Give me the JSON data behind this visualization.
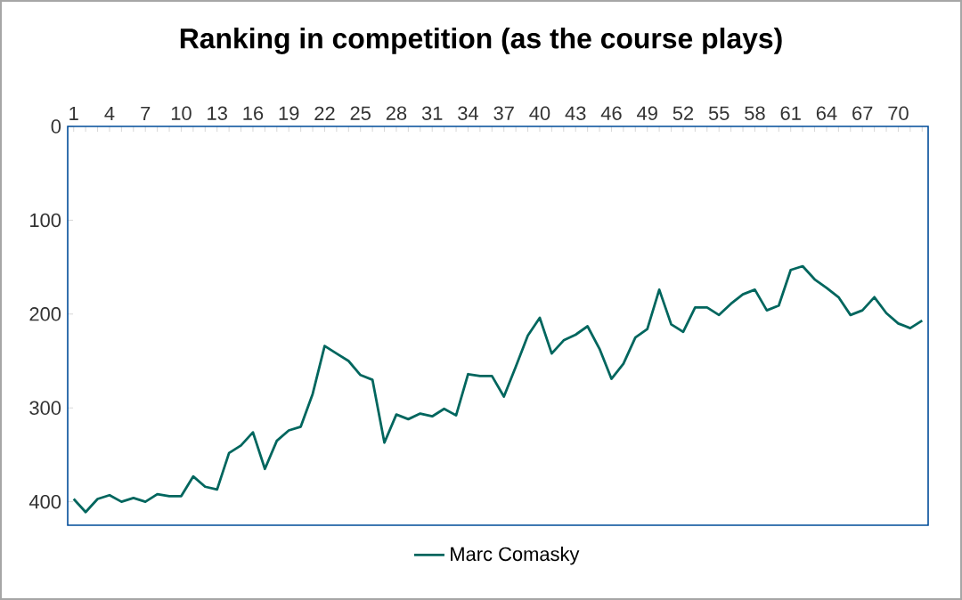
{
  "chart_data": {
    "type": "line",
    "title": "Ranking in competition (as the course plays)",
    "categories": [
      "1",
      null,
      null,
      "4",
      null,
      null,
      "7",
      null,
      null,
      "10",
      null,
      null,
      "13",
      null,
      null,
      "16",
      null,
      null,
      "19",
      null,
      null,
      "22",
      null,
      null,
      "25",
      null,
      null,
      "28",
      null,
      null,
      "31",
      null,
      null,
      "34",
      null,
      null,
      "37",
      null,
      null,
      "40",
      null,
      null,
      "43",
      null,
      null,
      "46",
      null,
      null,
      "49",
      null,
      null,
      "52",
      null,
      null,
      "55",
      null,
      null,
      "58",
      null,
      null,
      "61",
      null,
      null,
      "64",
      null,
      null,
      "67",
      null,
      null,
      "70",
      null,
      null
    ],
    "series": [
      {
        "name": "Marc Comasky",
        "color": "#00665e",
        "values": [
          397,
          411,
          397,
          393,
          400,
          396,
          400,
          392,
          394,
          394,
          373,
          384,
          387,
          348,
          340,
          326,
          365,
          335,
          324,
          320,
          285,
          234,
          242,
          250,
          265,
          270,
          337,
          307,
          312,
          306,
          309,
          301,
          308,
          264,
          266,
          266,
          288,
          256,
          223,
          204,
          242,
          228,
          222,
          213,
          237,
          269,
          253,
          225,
          216,
          174,
          211,
          219,
          193,
          193,
          201,
          189,
          179,
          174,
          196,
          191,
          153,
          149,
          163,
          172,
          182,
          201,
          196,
          182,
          199,
          210,
          215,
          207
        ]
      }
    ],
    "ylim": [
      425,
      0
    ],
    "yticks": [
      0,
      100,
      200,
      300,
      400
    ],
    "legend": "bottom"
  }
}
